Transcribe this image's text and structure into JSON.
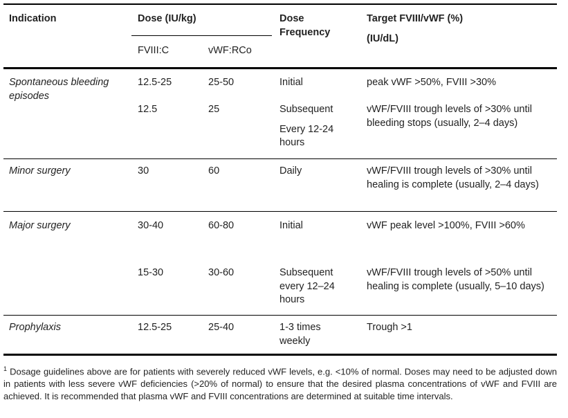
{
  "header": {
    "indication": "Indication",
    "dose": "Dose (IU/kg)",
    "dose_sub": [
      "FVIII:C",
      "vWF:RCo"
    ],
    "frequency": "Dose Frequency",
    "target": "Target FVIII/vWF (%)",
    "target_unit": "(IU/dL)"
  },
  "rows": [
    {
      "indication": "Spontaneous bleeding episodes",
      "entries": [
        {
          "fviii": "12.5-25",
          "vwf": "25-50",
          "frequency": [
            "Initial"
          ],
          "target": "peak vWF >50%, FVIII >30%"
        },
        {
          "fviii": "12.5",
          "vwf": "25",
          "frequency": [
            "Subsequent",
            "Every 12-24 hours"
          ],
          "target": "vWF/FVIII trough levels of >30% until bleeding stops (usually, 2–4 days)"
        }
      ]
    },
    {
      "indication": "Minor surgery",
      "entries": [
        {
          "fviii": "30",
          "vwf": "60",
          "frequency": [
            "Daily"
          ],
          "target": "vWF/FVIII trough levels of >30% until healing is complete (usually, 2–4 days)"
        }
      ]
    },
    {
      "indication": "Major surgery",
      "entries": [
        {
          "fviii": "30-40",
          "vwf": "60-80",
          "frequency": [
            "Initial"
          ],
          "target": "vWF peak level >100%, FVIII >60%"
        },
        {
          "fviii": "15-30",
          "vwf": "30-60",
          "frequency": [
            "Subsequent every 12–24 hours"
          ],
          "target": "vWF/FVIII trough levels of >50% until healing is complete (usually, 5–10 days)"
        }
      ]
    },
    {
      "indication": "Prophylaxis",
      "entries": [
        {
          "fviii": "12.5-25",
          "vwf": "25-40",
          "frequency": [
            "1-3 times weekly"
          ],
          "target": "Trough >1"
        }
      ]
    }
  ],
  "footnote": {
    "mark": "1",
    "text": "Dosage guidelines above are for patients with severely reduced vWF levels, e.g. <10% of normal. Doses may need to be adjusted down in patients with less severe vWF deficiencies (>20% of normal) to ensure that the desired plasma concentrations of vWF and FVIII are achieved. It is recommended that plasma vWF and FVIII concentrations are determined at suitable time intervals."
  }
}
